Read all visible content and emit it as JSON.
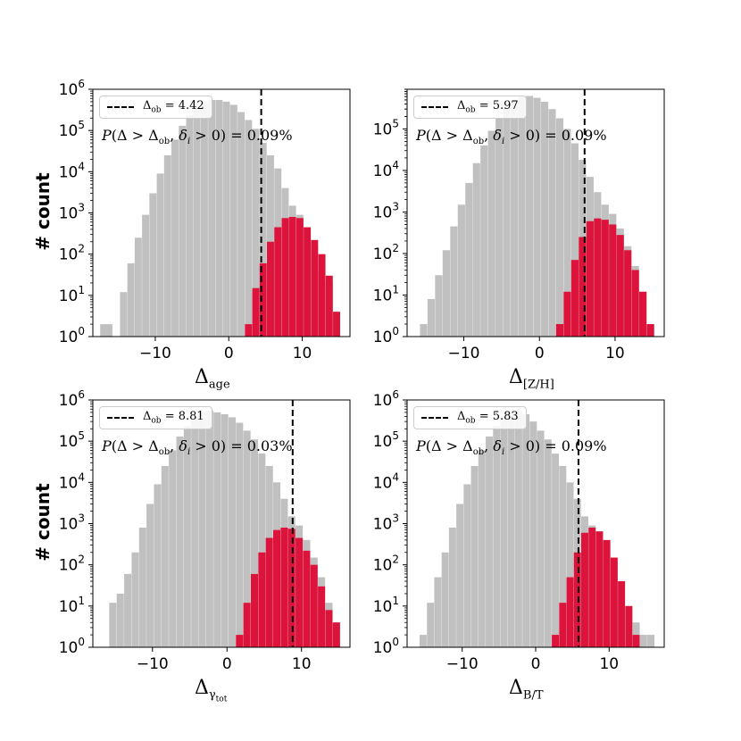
{
  "y_axis_label": "# count",
  "chart_data": [
    {
      "type": "bar",
      "xlabel_main": "Δ",
      "xlabel_sub": "age",
      "xlabel_subsub": "",
      "ylabel": "# count",
      "yscale": "log",
      "ylim": [
        1,
        1000000
      ],
      "xticks": [
        -10,
        0,
        10
      ],
      "xlim": [
        -18.5,
        16.5
      ],
      "delta_ob": 4.42,
      "legend_text": "4.42",
      "p_text_value": "0.09%",
      "series": [
        {
          "color": "#c0c0c0",
          "bins": [
            -17.5,
            -15.8,
            -14.8,
            -13.8,
            -12.8,
            -11.8,
            -10.8,
            -9.8,
            -8.8,
            -7.8,
            -6.8,
            -5.8,
            -4.8,
            -3.8,
            -2.8,
            -1.8,
            -0.8,
            0.2,
            1.2,
            2.2,
            3.2,
            4.2,
            5.2,
            6.2,
            7.2,
            8.2,
            9.2,
            10.2,
            11.2,
            12.2,
            13.2,
            14.2,
            15.2
          ],
          "values": [
            2,
            1,
            12,
            60,
            250,
            900,
            3000,
            9000,
            25000,
            60000,
            130000,
            230000,
            380000,
            500000,
            550000,
            550000,
            500000,
            420000,
            280000,
            180000,
            110000,
            50000,
            25000,
            12000,
            4000,
            1500,
            900,
            400,
            150,
            50,
            20,
            4
          ]
        },
        {
          "color": "#dc143c",
          "bins": [
            2.2,
            3.2,
            4.2,
            5.2,
            6.2,
            7.2,
            8.2,
            9.2,
            10.2,
            11.2,
            12.2,
            13.2,
            14.2,
            15.2
          ],
          "values": [
            2,
            15,
            60,
            200,
            450,
            750,
            800,
            750,
            450,
            220,
            100,
            30,
            4
          ]
        }
      ]
    },
    {
      "type": "bar",
      "xlabel_main": "Δ",
      "xlabel_sub": "[Z/H]",
      "xlabel_subsub": "",
      "ylabel": "",
      "yscale": "log",
      "ylim": [
        1,
        900000
      ],
      "xticks": [
        -10,
        0,
        10
      ],
      "xlim": [
        -17.5,
        16.5
      ],
      "delta_ob": 5.97,
      "legend_text": "5.97",
      "p_text_value": "0.09%",
      "series": [
        {
          "color": "#c0c0c0",
          "bins": [
            -15.8,
            -14.8,
            -13.8,
            -12.8,
            -11.8,
            -10.8,
            -9.8,
            -8.8,
            -7.8,
            -6.8,
            -5.8,
            -4.8,
            -3.8,
            -2.8,
            -1.8,
            -0.8,
            0.2,
            1.2,
            2.2,
            3.2,
            4.2,
            5.2,
            6.2,
            7.2,
            8.2,
            9.2,
            10.2,
            11.2,
            12.2,
            13.2,
            14.2,
            15.2
          ],
          "values": [
            2,
            8,
            30,
            120,
            450,
            1500,
            5000,
            15000,
            40000,
            90000,
            180000,
            320000,
            480000,
            600000,
            620000,
            560000,
            450000,
            300000,
            180000,
            100000,
            45000,
            18000,
            7000,
            3000,
            1500,
            900,
            400,
            150,
            50,
            12,
            2
          ]
        },
        {
          "color": "#dc143c",
          "bins": [
            2.2,
            3.2,
            4.2,
            5.2,
            6.2,
            7.2,
            8.2,
            9.2,
            10.2,
            11.2,
            12.2,
            13.2,
            14.2,
            15.2
          ],
          "values": [
            2,
            12,
            70,
            250,
            600,
            700,
            650,
            500,
            280,
            120,
            40,
            12,
            2
          ]
        }
      ]
    },
    {
      "type": "bar",
      "xlabel_main": "Δ",
      "xlabel_sub": "γ",
      "xlabel_subsub": "tot",
      "ylabel": "# count",
      "yscale": "log",
      "ylim": [
        1,
        1000000
      ],
      "xticks": [
        -10,
        0,
        10
      ],
      "xlim": [
        -18,
        16.5
      ],
      "delta_ob": 8.81,
      "legend_text": "8.81",
      "p_text_value": "0.03%",
      "series": [
        {
          "color": "#c0c0c0",
          "bins": [
            -15.8,
            -14.8,
            -13.8,
            -12.8,
            -11.8,
            -10.8,
            -9.8,
            -8.8,
            -7.8,
            -6.8,
            -5.8,
            -4.8,
            -3.8,
            -2.8,
            -1.8,
            -0.8,
            0.2,
            1.2,
            2.2,
            3.2,
            4.2,
            5.2,
            6.2,
            7.2,
            8.2,
            9.2,
            10.2,
            11.2,
            12.2,
            13.2,
            14.2,
            15.2
          ],
          "values": [
            12,
            20,
            60,
            200,
            800,
            3000,
            9000,
            25000,
            60000,
            130000,
            230000,
            380000,
            500000,
            550000,
            500000,
            450000,
            380000,
            280000,
            180000,
            110000,
            50000,
            25000,
            10000,
            4000,
            1500,
            900,
            400,
            150,
            50,
            12,
            4
          ]
        },
        {
          "color": "#dc143c",
          "bins": [
            1.2,
            2.2,
            3.2,
            4.2,
            5.2,
            6.2,
            7.2,
            8.2,
            9.2,
            10.2,
            11.2,
            12.2,
            13.2,
            14.2,
            15.2
          ],
          "values": [
            2,
            12,
            60,
            200,
            450,
            700,
            800,
            750,
            450,
            220,
            100,
            30,
            8,
            4
          ]
        }
      ]
    },
    {
      "type": "bar",
      "xlabel_main": "Δ",
      "xlabel_sub": "B/T",
      "xlabel_subsub": "",
      "ylabel": "",
      "yscale": "log",
      "ylim": [
        1,
        1000000
      ],
      "xticks": [
        -10,
        0,
        10
      ],
      "xlim": [
        -17.5,
        17.5
      ],
      "delta_ob": 5.83,
      "legend_text": "5.83",
      "p_text_value": "0.09%",
      "series": [
        {
          "color": "#c0c0c0",
          "bins": [
            -15.8,
            -14.8,
            -13.8,
            -12.8,
            -11.8,
            -10.8,
            -9.8,
            -8.8,
            -7.8,
            -6.8,
            -5.8,
            -4.8,
            -3.8,
            -2.8,
            -1.8,
            -0.8,
            0.2,
            1.2,
            2.2,
            3.2,
            4.2,
            5.2,
            6.2,
            7.2,
            8.2,
            9.2,
            10.2,
            11.2,
            12.2,
            13.2,
            14.2,
            15.2,
            16.2
          ],
          "values": [
            2,
            12,
            50,
            200,
            800,
            3000,
            9000,
            25000,
            60000,
            130000,
            230000,
            380000,
            500000,
            550000,
            450000,
            300000,
            180000,
            110000,
            50000,
            25000,
            10000,
            4000,
            1500,
            900,
            600,
            350,
            120,
            40,
            10,
            4,
            2,
            2
          ]
        },
        {
          "color": "#dc143c",
          "bins": [
            2.2,
            3.2,
            4.2,
            5.2,
            6.2,
            7.2,
            8.2,
            9.2,
            10.2,
            11.2,
            12.2,
            13.2,
            14.2
          ],
          "values": [
            2,
            12,
            50,
            200,
            600,
            800,
            650,
            400,
            150,
            40,
            10,
            2
          ]
        }
      ]
    }
  ]
}
